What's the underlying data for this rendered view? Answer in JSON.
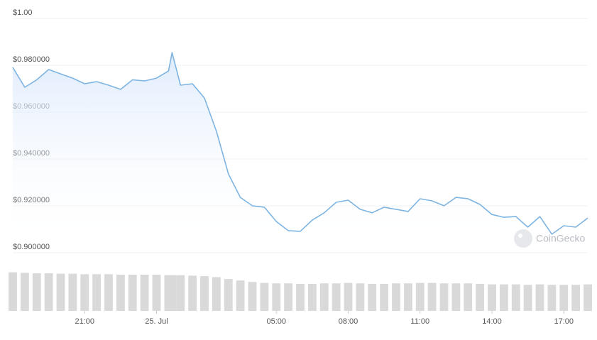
{
  "chart_data": {
    "type": "line",
    "watermark": "CoinGecko",
    "x": [
      18,
      18.5,
      19,
      19.5,
      20,
      20.5,
      21,
      21.5,
      22,
      22.5,
      23,
      23.5,
      24,
      24.5,
      24.65,
      25,
      25.5,
      26,
      26.5,
      27,
      27.5,
      28,
      28.5,
      29,
      29.5,
      30,
      30.5,
      31,
      31.5,
      32,
      32.5,
      33,
      33.5,
      34,
      34.5,
      35,
      35.5,
      36,
      36.5,
      37,
      37.5,
      38,
      38.5,
      39,
      39.5,
      40,
      40.5,
      41,
      41.5,
      42
    ],
    "series": [
      {
        "color": "#7eb4e2",
        "values": [
          0.9773,
          0.9688,
          0.972,
          0.9764,
          0.9745,
          0.9727,
          0.9703,
          0.9712,
          0.9697,
          0.9679,
          0.972,
          0.9715,
          0.9727,
          0.9758,
          0.9836,
          0.9697,
          0.9703,
          0.9642,
          0.95,
          0.9318,
          0.9218,
          0.9182,
          0.9176,
          0.9115,
          0.9076,
          0.9073,
          0.9121,
          0.9152,
          0.9197,
          0.9206,
          0.9167,
          0.9152,
          0.9176,
          0.9167,
          0.9158,
          0.9212,
          0.9203,
          0.9182,
          0.9218,
          0.9212,
          0.9188,
          0.9145,
          0.9133,
          0.9136,
          0.9091,
          0.9136,
          0.9061,
          0.9097,
          0.9091,
          0.913
        ]
      },
      {
        "type": "bar",
        "axis": "y2",
        "color": "#d9d9d9",
        "values": [
          80,
          79,
          78,
          78,
          77,
          77,
          76,
          76,
          76,
          75,
          75,
          75,
          75,
          74,
          74,
          74,
          73,
          72,
          70,
          66,
          63,
          60,
          58,
          57,
          57,
          56,
          56,
          57,
          57,
          58,
          57,
          56,
          56,
          57,
          57,
          58,
          58,
          57,
          57,
          57,
          56,
          55,
          55,
          55,
          54,
          55,
          54,
          54,
          54,
          55
        ]
      }
    ],
    "xlim": [
      18,
      42
    ],
    "xticks": [
      {
        "value": 21,
        "label": "21:00"
      },
      {
        "value": 24,
        "label": "25. Jul"
      },
      {
        "value": 29,
        "label": "05:00"
      },
      {
        "value": 32,
        "label": "08:00"
      },
      {
        "value": 35,
        "label": "11:00"
      },
      {
        "value": 38,
        "label": "14:00"
      },
      {
        "value": 41,
        "label": "17:00"
      }
    ],
    "ylim": [
      0.9,
      1.0
    ],
    "yticks": [
      {
        "value": 0.9,
        "label": "$0.900000"
      },
      {
        "value": 0.92,
        "label": "$0.920000"
      },
      {
        "value": 0.94,
        "label": "$0.940000"
      },
      {
        "value": 0.96,
        "label": "$0.960000"
      },
      {
        "value": 0.98,
        "label": "$0.980000"
      },
      {
        "value": 1.0,
        "label": "$1.00"
      }
    ],
    "y2lim": [
      0,
      100
    ],
    "grid": true
  }
}
